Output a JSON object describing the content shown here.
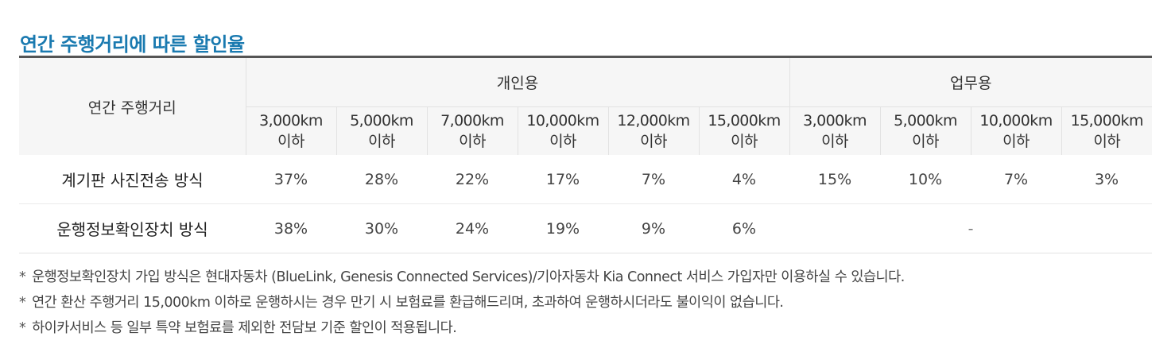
{
  "title": "연간 주행거리에 따른 할인율",
  "table": {
    "row_header_title": "연간 주행거리",
    "group_personal": "개인용",
    "group_business": "업무용",
    "ranges": [
      {
        "km": "3,000km",
        "suffix": "이하"
      },
      {
        "km": "5,000km",
        "suffix": "이하"
      },
      {
        "km": "7,000km",
        "suffix": "이하"
      },
      {
        "km": "10,000km",
        "suffix": "이하"
      },
      {
        "km": "12,000km",
        "suffix": "이하"
      },
      {
        "km": "15,000km",
        "suffix": "이하"
      },
      {
        "km": "3,000km",
        "suffix": "이하"
      },
      {
        "km": "5,000km",
        "suffix": "이하"
      },
      {
        "km": "10,000km",
        "suffix": "이하"
      },
      {
        "km": "15,000km",
        "suffix": "이하"
      }
    ],
    "rows": [
      {
        "label": "계기판 사진전송 방식",
        "personal": [
          "37%",
          "28%",
          "22%",
          "17%",
          "7%",
          "4%"
        ],
        "business": [
          "15%",
          "10%",
          "7%",
          "3%"
        ]
      },
      {
        "label": "운행정보확인장치 방식",
        "personal": [
          "38%",
          "30%",
          "24%",
          "19%",
          "9%",
          "6%"
        ],
        "business_na": "-"
      }
    ]
  },
  "notes": {
    "marker": "*",
    "items": [
      "운행정보확인장치 가입 방식은 현대자동차 (BlueLink, Genesis Connected Services)/기아자동차 Kia Connect 서비스 가입자만 이용하실 수 있습니다.",
      "연간 환산 주행거리 15,000km 이하로 운행하시는 경우 만기 시 보험료를 환급해드리며, 초과하여 운행하시더라도 불이익이 없습니다.",
      "하이카서비스 등 일부 특약 보험료를 제외한 전담보 기준 할인이 적용됩니다."
    ]
  }
}
